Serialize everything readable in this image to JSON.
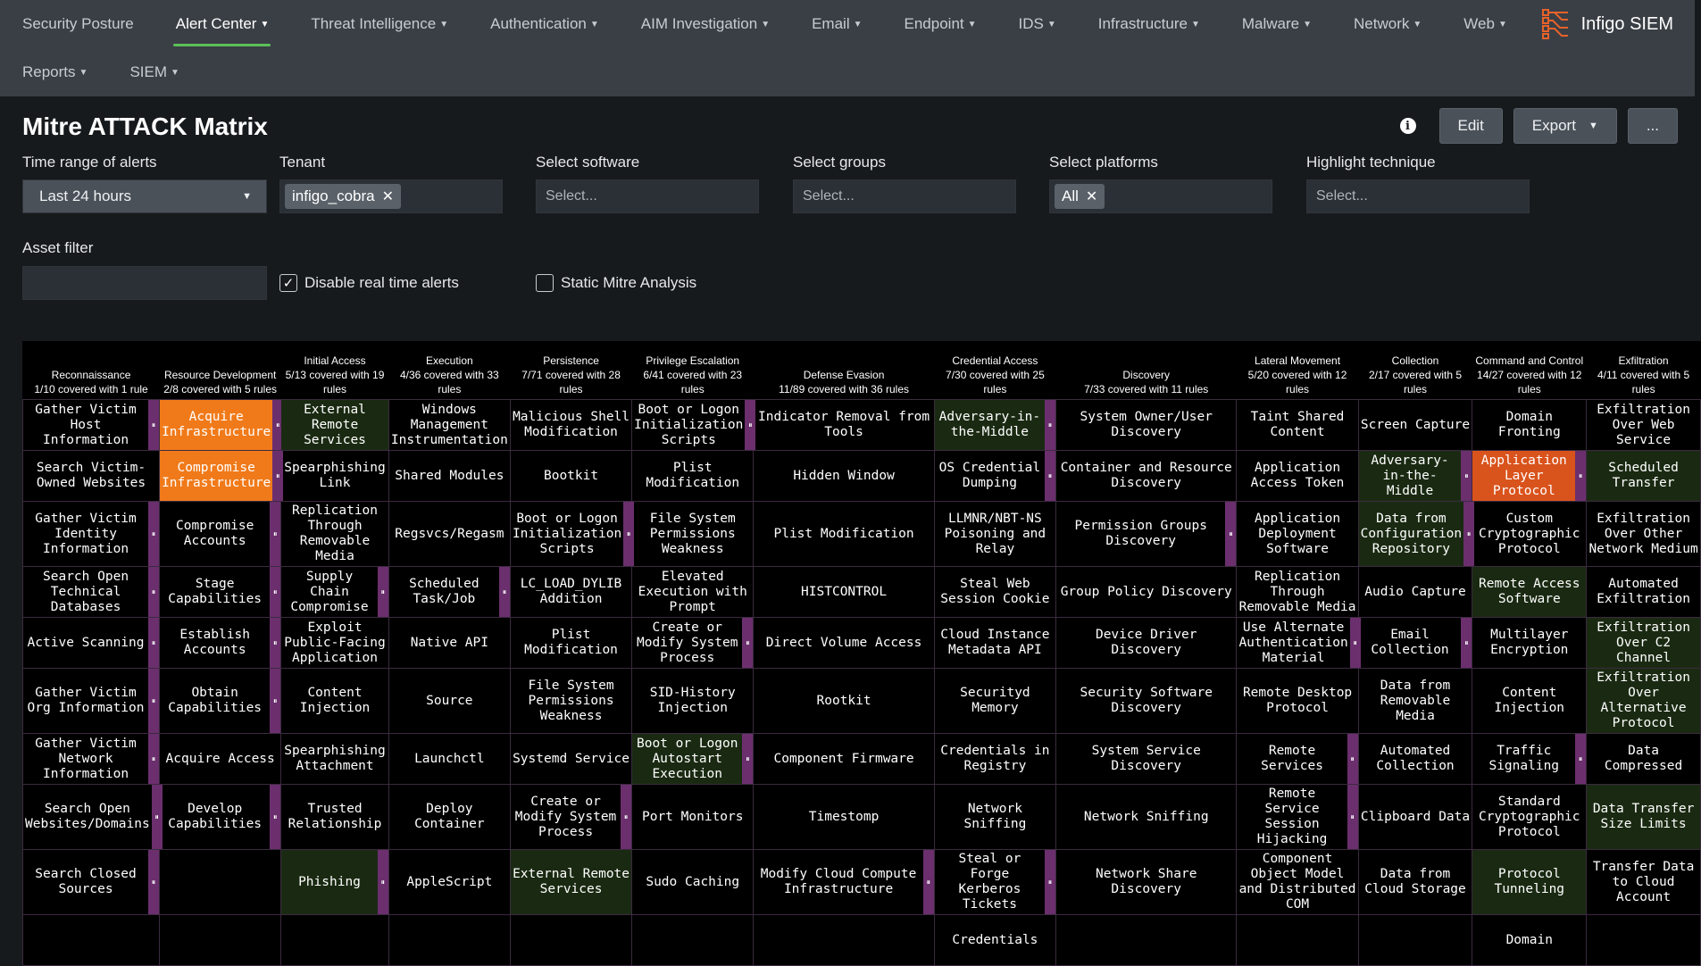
{
  "nav": {
    "row1": [
      {
        "label": "Security Posture",
        "dropdown": false,
        "active": false
      },
      {
        "label": "Alert Center",
        "dropdown": true,
        "active": true
      },
      {
        "label": "Threat Intelligence",
        "dropdown": true,
        "active": false
      },
      {
        "label": "Authentication",
        "dropdown": true,
        "active": false
      },
      {
        "label": "AIM Investigation",
        "dropdown": true,
        "active": false
      },
      {
        "label": "Email",
        "dropdown": true,
        "active": false
      },
      {
        "label": "Endpoint",
        "dropdown": true,
        "active": false
      },
      {
        "label": "IDS",
        "dropdown": true,
        "active": false
      },
      {
        "label": "Infrastructure",
        "dropdown": true,
        "active": false
      },
      {
        "label": "Malware",
        "dropdown": true,
        "active": false
      },
      {
        "label": "Network",
        "dropdown": true,
        "active": false
      },
      {
        "label": "Web",
        "dropdown": true,
        "active": false
      }
    ],
    "row2": [
      {
        "label": "Reports",
        "dropdown": true,
        "active": false
      },
      {
        "label": "SIEM",
        "dropdown": true,
        "active": false
      }
    ],
    "brand": "Infigo SIEM",
    "accent_color": "#5cc05a",
    "logo_color": "#e8622a"
  },
  "page": {
    "title": "Mitre ATTACK Matrix",
    "edit_label": "Edit",
    "export_label": "Export",
    "more_label": "..."
  },
  "filters": {
    "time_range": {
      "label": "Time range of alerts",
      "value": "Last 24 hours"
    },
    "tenant": {
      "label": "Tenant",
      "chip": "infigo_cobra"
    },
    "software": {
      "label": "Select software",
      "placeholder": "Select..."
    },
    "groups": {
      "label": "Select groups",
      "placeholder": "Select..."
    },
    "platforms": {
      "label": "Select platforms",
      "chip": "All"
    },
    "highlight": {
      "label": "Highlight technique",
      "placeholder": "Select..."
    },
    "asset": {
      "label": "Asset filter",
      "value": ""
    },
    "disable_rt": {
      "label": "Disable real time alerts",
      "checked": true
    },
    "static_mitre": {
      "label": "Static Mitre Analysis",
      "checked": false
    }
  },
  "matrix": {
    "colors": {
      "orange": "#f07a1a",
      "red": "#d9531c",
      "green": "#1a2a12",
      "subtech": "#6b2f6e",
      "border": "#3b2a3f"
    },
    "tactics": [
      {
        "name": "Reconnaissance",
        "coverage": "1/10 covered with 1 rule"
      },
      {
        "name": "Resource Development",
        "coverage": "2/8 covered with 5 rules"
      },
      {
        "name": "Initial Access",
        "coverage": "5/13 covered with 19 rules"
      },
      {
        "name": "Execution",
        "coverage": "4/36 covered with 33 rules"
      },
      {
        "name": "Persistence",
        "coverage": "7/71 covered with 28 rules"
      },
      {
        "name": "Privilege Escalation",
        "coverage": "6/41 covered with 23 rules"
      },
      {
        "name": "Defense Evasion",
        "coverage": "11/89 covered with 36 rules"
      },
      {
        "name": "Credential Access",
        "coverage": "7/30 covered with 25 rules"
      },
      {
        "name": "Discovery",
        "coverage": "7/33 covered with 11 rules"
      },
      {
        "name": "Lateral Movement",
        "coverage": "5/20 covered with 12 rules"
      },
      {
        "name": "Collection",
        "coverage": "2/17 covered with 5 rules"
      },
      {
        "name": "Command and Control",
        "coverage": "14/27 covered with 12 rules"
      },
      {
        "name": "Exfiltration",
        "coverage": "4/11 covered with 5 rules"
      }
    ],
    "rows": [
      [
        {
          "t": "Gather Victim Host Information",
          "s": true
        },
        {
          "t": "Acquire Infrastructure",
          "s": true,
          "h": "orange"
        },
        {
          "t": "External Remote Services",
          "s": false,
          "h": "green"
        },
        {
          "t": "Windows Management Instrumentation",
          "s": false
        },
        {
          "t": "Malicious Shell Modification",
          "s": false
        },
        {
          "t": "Boot or Logon Initialization Scripts",
          "s": true
        },
        {
          "t": "Indicator Removal from Tools",
          "s": false
        },
        {
          "t": "Adversary-in-the-Middle",
          "s": true,
          "h": "green"
        },
        {
          "t": "System Owner/User Discovery",
          "s": false
        },
        {
          "t": "Taint Shared Content",
          "s": false
        },
        {
          "t": "Screen Capture",
          "s": false
        },
        {
          "t": "Domain Fronting",
          "s": false
        },
        {
          "t": "Exfiltration Over Web Service",
          "s": false
        }
      ],
      [
        {
          "t": "Search Victim-Owned Websites",
          "s": false
        },
        {
          "t": "Compromise Infrastructure",
          "s": true,
          "h": "orange"
        },
        {
          "t": "Spearphishing Link",
          "s": false
        },
        {
          "t": "Shared Modules",
          "s": false
        },
        {
          "t": "Bootkit",
          "s": false
        },
        {
          "t": "Plist Modification",
          "s": false
        },
        {
          "t": "Hidden Window",
          "s": false
        },
        {
          "t": "OS Credential Dumping",
          "s": true
        },
        {
          "t": "Container and Resource Discovery",
          "s": false
        },
        {
          "t": "Application Access Token",
          "s": false
        },
        {
          "t": "Adversary-in-the-Middle",
          "s": true,
          "h": "green"
        },
        {
          "t": "Application Layer Protocol",
          "s": true,
          "h": "red"
        },
        {
          "t": "Scheduled Transfer",
          "s": false,
          "h": "green"
        }
      ],
      [
        {
          "t": "Gather Victim Identity Information",
          "s": true
        },
        {
          "t": "Compromise Accounts",
          "s": true
        },
        {
          "t": "Replication Through Removable Media",
          "s": false
        },
        {
          "t": "Regsvcs/Regasm",
          "s": false
        },
        {
          "t": "Boot or Logon Initialization Scripts",
          "s": true
        },
        {
          "t": "File System Permissions Weakness",
          "s": false
        },
        {
          "t": "Plist Modification",
          "s": false
        },
        {
          "t": "LLMNR/NBT-NS Poisoning and Relay",
          "s": false
        },
        {
          "t": "Permission Groups Discovery",
          "s": true
        },
        {
          "t": "Application Deployment Software",
          "s": false
        },
        {
          "t": "Data from Configuration Repository",
          "s": true,
          "h": "green"
        },
        {
          "t": "Custom Cryptographic Protocol",
          "s": false
        },
        {
          "t": "Exfiltration Over Other Network Medium",
          "s": false
        }
      ],
      [
        {
          "t": "Search Open Technical Databases",
          "s": true
        },
        {
          "t": "Stage Capabilities",
          "s": true
        },
        {
          "t": "Supply Chain Compromise",
          "s": true
        },
        {
          "t": "Scheduled Task/Job",
          "s": true
        },
        {
          "t": "LC_LOAD_DYLIB Addition",
          "s": false
        },
        {
          "t": "Elevated Execution with Prompt",
          "s": false
        },
        {
          "t": "HISTCONTROL",
          "s": false
        },
        {
          "t": "Steal Web Session Cookie",
          "s": false
        },
        {
          "t": "Group Policy Discovery",
          "s": false
        },
        {
          "t": "Replication Through Removable Media",
          "s": false
        },
        {
          "t": "Audio Capture",
          "s": false
        },
        {
          "t": "Remote Access Software",
          "s": false,
          "h": "green"
        },
        {
          "t": "Automated Exfiltration",
          "s": false
        }
      ],
      [
        {
          "t": "Active Scanning",
          "s": true
        },
        {
          "t": "Establish Accounts",
          "s": true
        },
        {
          "t": "Exploit Public-Facing Application",
          "s": false
        },
        {
          "t": "Native API",
          "s": false
        },
        {
          "t": "Plist Modification",
          "s": false
        },
        {
          "t": "Create or Modify System Process",
          "s": true
        },
        {
          "t": "Direct Volume Access",
          "s": false
        },
        {
          "t": "Cloud Instance Metadata API",
          "s": false
        },
        {
          "t": "Device Driver Discovery",
          "s": false
        },
        {
          "t": "Use Alternate Authentication Material",
          "s": true
        },
        {
          "t": "Email Collection",
          "s": true
        },
        {
          "t": "Multilayer Encryption",
          "s": false
        },
        {
          "t": "Exfiltration Over C2 Channel",
          "s": false,
          "h": "green"
        }
      ],
      [
        {
          "t": "Gather Victim Org Information",
          "s": true
        },
        {
          "t": "Obtain Capabilities",
          "s": true
        },
        {
          "t": "Content Injection",
          "s": false
        },
        {
          "t": "Source",
          "s": false
        },
        {
          "t": "File System Permissions Weakness",
          "s": false
        },
        {
          "t": "SID-History Injection",
          "s": false
        },
        {
          "t": "Rootkit",
          "s": false
        },
        {
          "t": "Securityd Memory",
          "s": false
        },
        {
          "t": "Security Software Discovery",
          "s": false
        },
        {
          "t": "Remote Desktop Protocol",
          "s": false
        },
        {
          "t": "Data from Removable Media",
          "s": false
        },
        {
          "t": "Content Injection",
          "s": false
        },
        {
          "t": "Exfiltration Over Alternative Protocol",
          "s": false,
          "h": "green"
        }
      ],
      [
        {
          "t": "Gather Victim Network Information",
          "s": true
        },
        {
          "t": "Acquire Access",
          "s": false
        },
        {
          "t": "Spearphishing Attachment",
          "s": false
        },
        {
          "t": "Launchctl",
          "s": false
        },
        {
          "t": "Systemd Service",
          "s": false
        },
        {
          "t": "Boot or Logon Autostart Execution",
          "s": true,
          "h": "green"
        },
        {
          "t": "Component Firmware",
          "s": false
        },
        {
          "t": "Credentials in Registry",
          "s": false
        },
        {
          "t": "System Service Discovery",
          "s": false
        },
        {
          "t": "Remote Services",
          "s": true
        },
        {
          "t": "Automated Collection",
          "s": false
        },
        {
          "t": "Traffic Signaling",
          "s": true
        },
        {
          "t": "Data Compressed",
          "s": false
        }
      ],
      [
        {
          "t": "Search Open Websites/Domains",
          "s": true
        },
        {
          "t": "Develop Capabilities",
          "s": true
        },
        {
          "t": "Trusted Relationship",
          "s": false
        },
        {
          "t": "Deploy Container",
          "s": false
        },
        {
          "t": "Create or Modify System Process",
          "s": true
        },
        {
          "t": "Port Monitors",
          "s": false
        },
        {
          "t": "Timestomp",
          "s": false
        },
        {
          "t": "Network Sniffing",
          "s": false
        },
        {
          "t": "Network Sniffing",
          "s": false
        },
        {
          "t": "Remote Service Session Hijacking",
          "s": true
        },
        {
          "t": "Clipboard Data",
          "s": false
        },
        {
          "t": "Standard Cryptographic Protocol",
          "s": false
        },
        {
          "t": "Data Transfer Size Limits",
          "s": false,
          "h": "green"
        }
      ],
      [
        {
          "t": "Search Closed Sources",
          "s": true
        },
        {
          "t": "",
          "s": false,
          "h": "empty"
        },
        {
          "t": "Phishing",
          "s": true,
          "h": "green"
        },
        {
          "t": "AppleScript",
          "s": false
        },
        {
          "t": "External Remote Services",
          "s": false,
          "h": "green"
        },
        {
          "t": "Sudo Caching",
          "s": false
        },
        {
          "t": "Modify Cloud Compute Infrastructure",
          "s": true
        },
        {
          "t": "Steal or Forge Kerberos Tickets",
          "s": true
        },
        {
          "t": "Network Share Discovery",
          "s": false
        },
        {
          "t": "Component Object Model and Distributed COM",
          "s": false
        },
        {
          "t": "Data from Cloud Storage",
          "s": false
        },
        {
          "t": "Protocol Tunneling",
          "s": false,
          "h": "green"
        },
        {
          "t": "Transfer Data to Cloud Account",
          "s": false
        }
      ],
      [
        {
          "t": "",
          "s": false
        },
        {
          "t": "",
          "s": false
        },
        {
          "t": "",
          "s": false
        },
        {
          "t": "",
          "s": false
        },
        {
          "t": "",
          "s": false
        },
        {
          "t": "",
          "s": false
        },
        {
          "t": "",
          "s": false
        },
        {
          "t": "Credentials",
          "s": false
        },
        {
          "t": "",
          "s": false
        },
        {
          "t": "",
          "s": false
        },
        {
          "t": "",
          "s": false
        },
        {
          "t": "Domain",
          "s": false
        },
        {
          "t": "",
          "s": false
        }
      ]
    ]
  }
}
